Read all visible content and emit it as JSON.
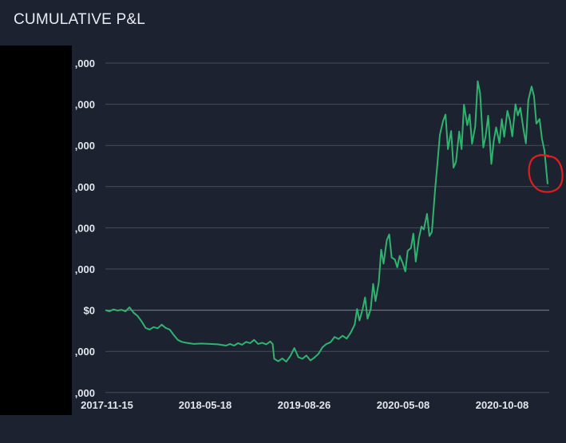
{
  "title": "CUMULATIVE P&L",
  "chart_data": {
    "type": "line",
    "title": "CUMULATIVE P&L",
    "xlabel": "",
    "ylabel": "",
    "x_tick_labels": [
      "2017-11-15",
      "2018-05-18",
      "2019-08-26",
      "2020-05-08",
      "2020-10-08"
    ],
    "y_tick_labels": [
      ",000",
      ",000",
      ",000",
      ",000",
      ",000",
      ",000",
      "$0",
      ",000",
      ",000"
    ],
    "y_tick_levels": [
      6,
      5,
      4,
      3,
      2,
      1,
      0,
      -1,
      -2
    ],
    "ylim": [
      -2,
      6
    ],
    "grid": true,
    "series": [
      {
        "color": "#2fb36f",
        "points": [
          [
            0,
            0.0
          ],
          [
            5,
            -0.03
          ],
          [
            10,
            0.02
          ],
          [
            15,
            -0.01
          ],
          [
            20,
            0.01
          ],
          [
            25,
            -0.03
          ],
          [
            30,
            0.07
          ],
          [
            35,
            -0.06
          ],
          [
            40,
            -0.14
          ],
          [
            45,
            -0.27
          ],
          [
            50,
            -0.43
          ],
          [
            55,
            -0.47
          ],
          [
            60,
            -0.41
          ],
          [
            65,
            -0.44
          ],
          [
            70,
            -0.35
          ],
          [
            75,
            -0.43
          ],
          [
            80,
            -0.47
          ],
          [
            85,
            -0.6
          ],
          [
            90,
            -0.72
          ],
          [
            95,
            -0.77
          ],
          [
            100,
            -0.79
          ],
          [
            110,
            -0.82
          ],
          [
            120,
            -0.81
          ],
          [
            130,
            -0.82
          ],
          [
            140,
            -0.83
          ],
          [
            150,
            -0.86
          ],
          [
            155,
            -0.82
          ],
          [
            160,
            -0.86
          ],
          [
            165,
            -0.8
          ],
          [
            170,
            -0.84
          ],
          [
            175,
            -0.77
          ],
          [
            180,
            -0.8
          ],
          [
            185,
            -0.72
          ],
          [
            190,
            -0.82
          ],
          [
            195,
            -0.79
          ],
          [
            200,
            -0.83
          ],
          [
            205,
            -0.76
          ],
          [
            208,
            -0.82
          ],
          [
            210,
            -1.18
          ],
          [
            215,
            -1.24
          ],
          [
            220,
            -1.17
          ],
          [
            225,
            -1.25
          ],
          [
            230,
            -1.11
          ],
          [
            235,
            -0.92
          ],
          [
            240,
            -1.14
          ],
          [
            245,
            -1.18
          ],
          [
            250,
            -1.1
          ],
          [
            255,
            -1.22
          ],
          [
            260,
            -1.15
          ],
          [
            265,
            -1.06
          ],
          [
            270,
            -0.9
          ],
          [
            275,
            -0.82
          ],
          [
            280,
            -0.78
          ],
          [
            285,
            -0.65
          ],
          [
            290,
            -0.7
          ],
          [
            295,
            -0.62
          ],
          [
            300,
            -0.69
          ],
          [
            305,
            -0.55
          ],
          [
            310,
            -0.35
          ],
          [
            313,
            0.03
          ],
          [
            316,
            -0.25
          ],
          [
            320,
            0.03
          ],
          [
            323,
            0.31
          ],
          [
            326,
            -0.21
          ],
          [
            330,
            0.03
          ],
          [
            333,
            0.64
          ],
          [
            336,
            0.22
          ],
          [
            340,
            0.68
          ],
          [
            343,
            1.47
          ],
          [
            346,
            1.13
          ],
          [
            350,
            1.7
          ],
          [
            353,
            1.84
          ],
          [
            356,
            1.28
          ],
          [
            360,
            1.23
          ],
          [
            363,
            1.04
          ],
          [
            366,
            1.32
          ],
          [
            370,
            1.13
          ],
          [
            373,
            0.94
          ],
          [
            376,
            1.44
          ],
          [
            380,
            1.51
          ],
          [
            383,
            1.86
          ],
          [
            386,
            1.18
          ],
          [
            390,
            1.75
          ],
          [
            393,
            2.03
          ],
          [
            396,
            1.96
          ],
          [
            400,
            2.34
          ],
          [
            403,
            1.8
          ],
          [
            406,
            1.9
          ],
          [
            410,
            2.92
          ],
          [
            413,
            3.57
          ],
          [
            416,
            4.26
          ],
          [
            420,
            4.6
          ],
          [
            423,
            4.75
          ],
          [
            426,
            3.91
          ],
          [
            430,
            4.35
          ],
          [
            433,
            3.46
          ],
          [
            436,
            3.6
          ],
          [
            440,
            4.34
          ],
          [
            443,
            3.91
          ],
          [
            446,
            4.99
          ],
          [
            450,
            4.49
          ],
          [
            453,
            4.75
          ],
          [
            456,
            4.04
          ],
          [
            460,
            4.46
          ],
          [
            463,
            5.56
          ],
          [
            466,
            5.27
          ],
          [
            470,
            3.95
          ],
          [
            473,
            4.23
          ],
          [
            476,
            4.72
          ],
          [
            480,
            3.55
          ],
          [
            483,
            4.11
          ],
          [
            486,
            4.44
          ],
          [
            490,
            4.06
          ],
          [
            493,
            4.64
          ],
          [
            496,
            4.21
          ],
          [
            500,
            4.84
          ],
          [
            503,
            4.61
          ],
          [
            506,
            4.22
          ],
          [
            510,
            5.0
          ],
          [
            513,
            4.73
          ],
          [
            516,
            4.91
          ],
          [
            520,
            4.38
          ],
          [
            523,
            4.05
          ],
          [
            526,
            5.1
          ],
          [
            530,
            5.43
          ],
          [
            533,
            5.2
          ],
          [
            536,
            4.53
          ],
          [
            540,
            4.64
          ],
          [
            543,
            4.16
          ],
          [
            546,
            3.88
          ],
          [
            550,
            3.06
          ]
        ]
      }
    ]
  },
  "annotation": {
    "color": "#e01e1e"
  }
}
